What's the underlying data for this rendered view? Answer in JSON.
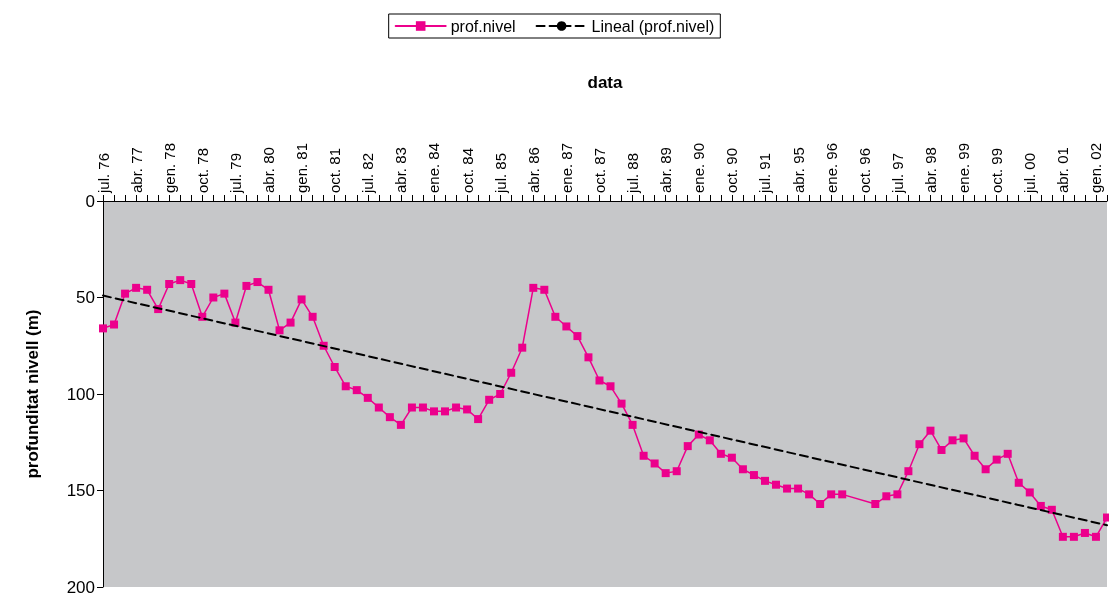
{
  "chart_data": {
    "type": "line",
    "xlabel": "data",
    "ylabel": "profunditat nivell (m)",
    "categories": [
      "jul. 76",
      null,
      null,
      "abr. 77",
      null,
      null,
      "gen. 78",
      null,
      null,
      "oct. 78",
      null,
      null,
      "jul. 79",
      null,
      null,
      "abr. 80",
      null,
      null,
      "gen. 81",
      null,
      null,
      "oct. 81",
      null,
      null,
      "jul. 82",
      null,
      null,
      "abr. 83",
      null,
      null,
      "ene. 84",
      null,
      null,
      "oct. 84",
      null,
      null,
      "jul. 85",
      null,
      null,
      "abr. 86",
      null,
      null,
      "ene. 87",
      null,
      null,
      "oct. 87",
      null,
      null,
      "jul. 88",
      null,
      null,
      "abr. 89",
      null,
      null,
      "ene. 90",
      null,
      null,
      "oct. 90",
      null,
      null,
      "jul. 91",
      null,
      null,
      "abr. 95",
      null,
      null,
      "ene. 96",
      null,
      null,
      "oct. 96",
      null,
      null,
      "jul. 97",
      null,
      null,
      "abr. 98",
      null,
      null,
      "ene. 99",
      null,
      null,
      "oct. 99",
      null,
      null,
      "jul. 00",
      null,
      null,
      "abr. 01",
      null,
      null,
      "gen. 02",
      null
    ],
    "series": [
      {
        "name": "prof.nivel",
        "color": "#ec008c",
        "marker": "square",
        "line_style": "solid",
        "values": [
          66,
          64,
          48,
          45,
          46,
          56,
          43,
          41,
          43,
          60,
          50,
          48,
          63,
          44,
          42,
          46,
          67,
          63,
          51,
          60,
          75,
          86,
          96,
          98,
          102,
          107,
          112,
          116,
          107,
          107,
          109,
          109,
          107,
          108,
          113,
          103,
          100,
          89,
          76,
          45,
          46,
          60,
          65,
          70,
          81,
          93,
          96,
          105,
          116,
          132,
          136,
          141,
          140,
          127,
          121,
          124,
          131,
          133,
          139,
          142,
          145,
          147,
          149,
          149,
          152,
          157,
          152,
          152,
          null,
          null,
          157,
          153,
          152,
          140,
          126,
          119,
          129,
          124,
          123,
          132,
          139,
          134,
          131,
          146,
          151,
          158,
          160,
          174,
          174,
          172,
          174,
          164
        ]
      },
      {
        "name": "Lineal (prof.nivel)",
        "color": "#000000",
        "marker": "none",
        "line_style": "dashed",
        "values": [
          49,
          null,
          null,
          null,
          null,
          null,
          null,
          null,
          null,
          null,
          null,
          null,
          null,
          null,
          null,
          null,
          null,
          null,
          null,
          null,
          null,
          null,
          null,
          null,
          null,
          null,
          null,
          null,
          null,
          null,
          null,
          null,
          null,
          null,
          null,
          null,
          null,
          null,
          null,
          null,
          null,
          null,
          null,
          null,
          null,
          null,
          null,
          null,
          null,
          null,
          null,
          null,
          null,
          null,
          null,
          null,
          null,
          null,
          null,
          null,
          null,
          null,
          null,
          null,
          null,
          null,
          null,
          null,
          null,
          null,
          null,
          null,
          null,
          null,
          null,
          null,
          null,
          null,
          null,
          null,
          null,
          null,
          null,
          null,
          null,
          null,
          null,
          null,
          null,
          null,
          null,
          168
        ]
      }
    ],
    "ylim": [
      200,
      0
    ],
    "yticks": [
      0,
      50,
      100,
      150,
      200
    ],
    "grid": false,
    "legend": "top"
  }
}
